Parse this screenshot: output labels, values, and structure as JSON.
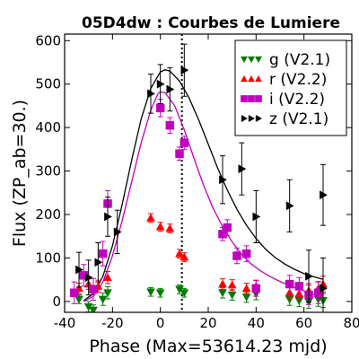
{
  "chart_data": {
    "type": "scatter",
    "title": "05D4dw : Courbes de Lumiere",
    "xlabel": "Phase (Max=53614.23 mjd)",
    "ylabel": "Flux (ZP_ab=30.)",
    "xlim": [
      -40,
      80
    ],
    "ylim": [
      -25,
      615
    ],
    "xticks": [
      "-40",
      "-20",
      "0",
      "20",
      "40",
      "60",
      "80"
    ],
    "yticks": [
      "0",
      "100",
      "200",
      "300",
      "400",
      "500",
      "600"
    ],
    "legend_position": "top-right",
    "max_marker_x": 9,
    "series": [
      {
        "name": "g (V2.1)",
        "color": "#007a00",
        "marker": "triangle-down",
        "points": [
          [
            -34,
            5,
            10
          ],
          [
            -30,
            -12,
            12
          ],
          [
            -28,
            -20,
            12
          ],
          [
            -24,
            5,
            14
          ],
          [
            -22,
            20,
            14
          ],
          [
            -4,
            22,
            10
          ],
          [
            0,
            20,
            10
          ],
          [
            8,
            28,
            10
          ],
          [
            10,
            20,
            10
          ],
          [
            26,
            20,
            12
          ],
          [
            30,
            15,
            12
          ],
          [
            36,
            10,
            12
          ],
          [
            40,
            18,
            14
          ],
          [
            54,
            5,
            14
          ],
          [
            58,
            2,
            14
          ],
          [
            62,
            0,
            16
          ],
          [
            66,
            5,
            16
          ],
          [
            68,
            2,
            16
          ]
        ]
      },
      {
        "name": "r (V2.2)",
        "color": "#ff0000",
        "marker": "triangle-up",
        "points": [
          [
            -34,
            30,
            12
          ],
          [
            -30,
            40,
            12
          ],
          [
            -26,
            35,
            14
          ],
          [
            -22,
            55,
            14
          ],
          [
            -4,
            192,
            10
          ],
          [
            0,
            172,
            10
          ],
          [
            4,
            168,
            10
          ],
          [
            8,
            110,
            10
          ],
          [
            10,
            102,
            10
          ],
          [
            26,
            40,
            12
          ],
          [
            30,
            38,
            12
          ],
          [
            36,
            30,
            12
          ],
          [
            40,
            35,
            14
          ],
          [
            54,
            20,
            14
          ],
          [
            58,
            18,
            14
          ],
          [
            62,
            25,
            16
          ],
          [
            66,
            30,
            16
          ],
          [
            68,
            40,
            18
          ]
        ]
      },
      {
        "name": "i (V2.2)",
        "color": "#c000c0",
        "marker": "square",
        "points": [
          [
            -36,
            20,
            25
          ],
          [
            -32,
            60,
            25
          ],
          [
            -28,
            28,
            25
          ],
          [
            -24,
            110,
            28
          ],
          [
            -22,
            225,
            30
          ],
          [
            0,
            445,
            20
          ],
          [
            4,
            405,
            18
          ],
          [
            8,
            340,
            15
          ],
          [
            10,
            365,
            15
          ],
          [
            26,
            155,
            15
          ],
          [
            28,
            170,
            18
          ],
          [
            32,
            105,
            18
          ],
          [
            36,
            110,
            18
          ],
          [
            40,
            30,
            18
          ],
          [
            54,
            40,
            20
          ],
          [
            58,
            35,
            20
          ],
          [
            62,
            15,
            22
          ],
          [
            66,
            20,
            25
          ]
        ]
      },
      {
        "name": "z (V2.1)",
        "color": "#000000",
        "marker": "triangle-right",
        "points": [
          [
            -34,
            73,
            40
          ],
          [
            -30,
            55,
            40
          ],
          [
            -26,
            90,
            45
          ],
          [
            -22,
            195,
            45
          ],
          [
            -18,
            160,
            50
          ],
          [
            -4,
            478,
            45
          ],
          [
            0,
            500,
            45
          ],
          [
            4,
            488,
            50
          ],
          [
            10,
            532,
            60
          ],
          [
            26,
            280,
            55
          ],
          [
            34,
            305,
            60
          ],
          [
            40,
            195,
            60
          ],
          [
            54,
            220,
            60
          ],
          [
            62,
            58,
            60
          ],
          [
            68,
            245,
            70
          ],
          [
            68,
            30,
            70
          ]
        ]
      }
    ],
    "fits": [
      {
        "band": "z (V2.1)",
        "color": "#000000",
        "points": [
          [
            -32,
            2
          ],
          [
            -28,
            18
          ],
          [
            -24,
            58
          ],
          [
            -20,
            128
          ],
          [
            -16,
            222
          ],
          [
            -12,
            325
          ],
          [
            -8,
            420
          ],
          [
            -4,
            490
          ],
          [
            0,
            528
          ],
          [
            2,
            533
          ],
          [
            4,
            530
          ],
          [
            8,
            507
          ],
          [
            12,
            468
          ],
          [
            16,
            418
          ],
          [
            20,
            362
          ],
          [
            24,
            306
          ],
          [
            28,
            256
          ],
          [
            32,
            212
          ],
          [
            36,
            175
          ],
          [
            40,
            145
          ],
          [
            44,
            120
          ],
          [
            48,
            101
          ],
          [
            52,
            86
          ],
          [
            56,
            74
          ],
          [
            60,
            64
          ],
          [
            64,
            57
          ],
          [
            68,
            51
          ]
        ]
      },
      {
        "band": "i (V2.2)",
        "color": "#c000c0",
        "points": [
          [
            -32,
            0
          ],
          [
            -28,
            12
          ],
          [
            -24,
            45
          ],
          [
            -20,
            105
          ],
          [
            -16,
            185
          ],
          [
            -12,
            275
          ],
          [
            -8,
            365
          ],
          [
            -4,
            440
          ],
          [
            -1,
            478
          ],
          [
            0,
            482
          ],
          [
            2,
            480
          ],
          [
            6,
            450
          ],
          [
            10,
            395
          ],
          [
            14,
            330
          ],
          [
            18,
            268
          ],
          [
            22,
            215
          ],
          [
            26,
            172
          ],
          [
            30,
            137
          ],
          [
            34,
            108
          ],
          [
            38,
            86
          ],
          [
            42,
            70
          ],
          [
            46,
            57
          ],
          [
            50,
            46
          ],
          [
            54,
            37
          ],
          [
            58,
            28
          ],
          [
            62,
            20
          ],
          [
            66,
            12
          ],
          [
            68,
            8
          ]
        ]
      }
    ]
  }
}
